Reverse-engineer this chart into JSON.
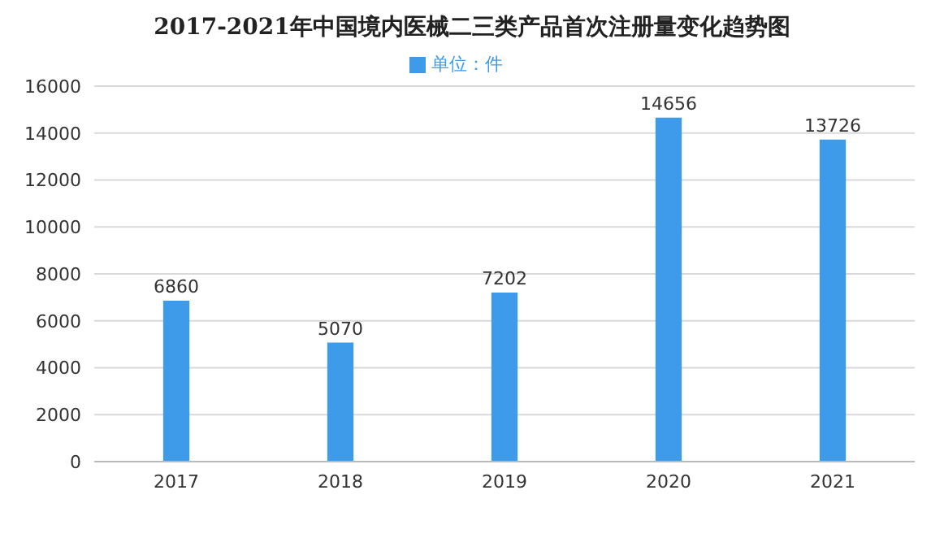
{
  "chart_data": {
    "type": "bar",
    "title": "2017-2021年中国境内医械二三类产品首次注册量变化趋势图",
    "categories": [
      "2017",
      "2018",
      "2019",
      "2020",
      "2021"
    ],
    "series": [
      {
        "name": "单位：件",
        "color": "#3d9be9",
        "values": [
          6860,
          5070,
          7202,
          14656,
          13726
        ]
      }
    ],
    "ylim": [
      0,
      16000
    ],
    "yticks": [
      0,
      2000,
      4000,
      6000,
      8000,
      10000,
      12000,
      14000,
      16000
    ],
    "grid": "y",
    "legend": "top",
    "data_labels": true
  }
}
